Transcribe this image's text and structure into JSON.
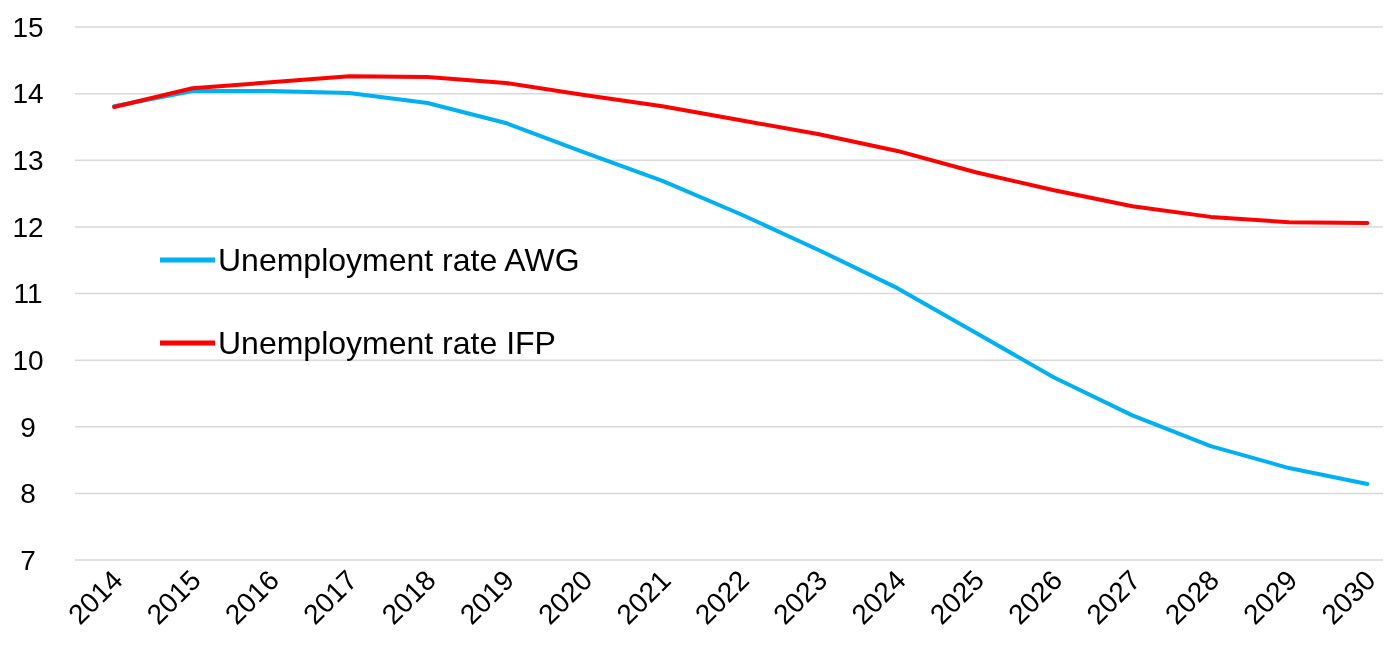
{
  "chart_data": {
    "type": "line",
    "x": [
      2014,
      2015,
      2016,
      2017,
      2018,
      2019,
      2020,
      2021,
      2022,
      2023,
      2024,
      2025,
      2026,
      2027,
      2028,
      2029,
      2030
    ],
    "xlim": [
      2013.5,
      2030.2
    ],
    "xticks": [
      2014,
      2015,
      2016,
      2017,
      2018,
      2019,
      2020,
      2021,
      2022,
      2023,
      2024,
      2025,
      2026,
      2027,
      2028,
      2029,
      2030
    ],
    "ylim": [
      7,
      15
    ],
    "yticks": [
      7,
      8,
      9,
      10,
      11,
      12,
      13,
      14,
      15
    ],
    "grid": "y",
    "legend": "left",
    "marker": "none",
    "line_style": "solid",
    "series": [
      {
        "name": "Unemployment rate AWG",
        "color": "#00b0f0",
        "values": [
          13.81,
          14.04,
          14.04,
          14.01,
          13.86,
          13.56,
          13.12,
          12.69,
          12.19,
          11.65,
          11.08,
          10.41,
          9.74,
          9.17,
          8.71,
          8.38,
          8.14
        ]
      },
      {
        "name": "Unemployment rate IFP",
        "color": "#ff0000",
        "values": [
          13.8,
          14.08,
          14.17,
          14.26,
          14.25,
          14.16,
          13.98,
          13.81,
          13.6,
          13.39,
          13.14,
          12.82,
          12.55,
          12.31,
          12.15,
          12.07,
          12.06
        ]
      }
    ]
  }
}
